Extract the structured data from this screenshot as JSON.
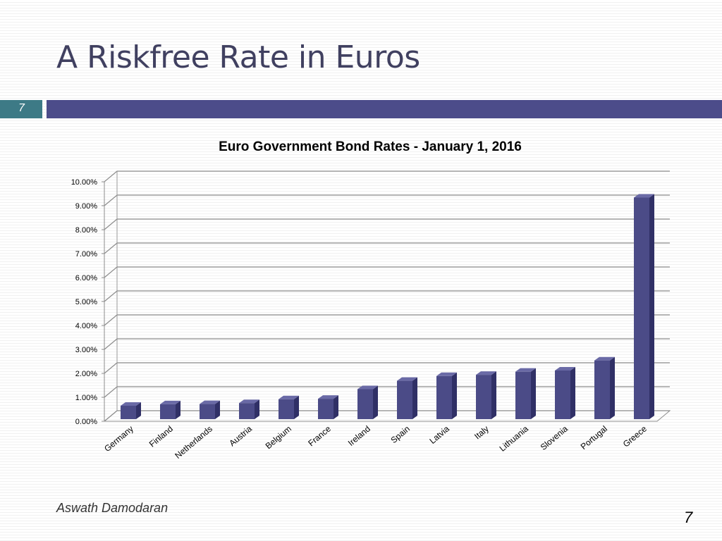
{
  "slide": {
    "title": "A Riskfree Rate in Euros",
    "number_badge": "7",
    "author": "Aswath Damodaran",
    "page_number": "7"
  },
  "colors": {
    "bar_front": "#4b4b87",
    "bar_side": "#303066",
    "bar_top": "#6a6aa6",
    "accent_bar": "#4c4c8a",
    "badge": "#3d7a86"
  },
  "chart_data": {
    "type": "bar",
    "title": "Euro Government Bond Rates - January 1, 2016",
    "categories": [
      "Germany",
      "Finland",
      "Netherlands",
      "Austria",
      "Belgium",
      "France",
      "Ireland",
      "Spain",
      "Latvia",
      "Italy",
      "Lithuania",
      "Slovenia",
      "Portugal",
      "Greece"
    ],
    "values": [
      0.56,
      0.62,
      0.63,
      0.67,
      0.83,
      0.85,
      1.25,
      1.6,
      1.8,
      1.85,
      1.98,
      2.03,
      2.45,
      9.25
    ],
    "ylim": [
      0,
      10
    ],
    "yticks": [
      "0.00%",
      "1.00%",
      "2.00%",
      "3.00%",
      "4.00%",
      "5.00%",
      "6.00%",
      "7.00%",
      "8.00%",
      "9.00%",
      "10.00%"
    ],
    "xlabel": "",
    "ylabel": "",
    "grid": true,
    "legend": "none",
    "style": "3d-column"
  }
}
